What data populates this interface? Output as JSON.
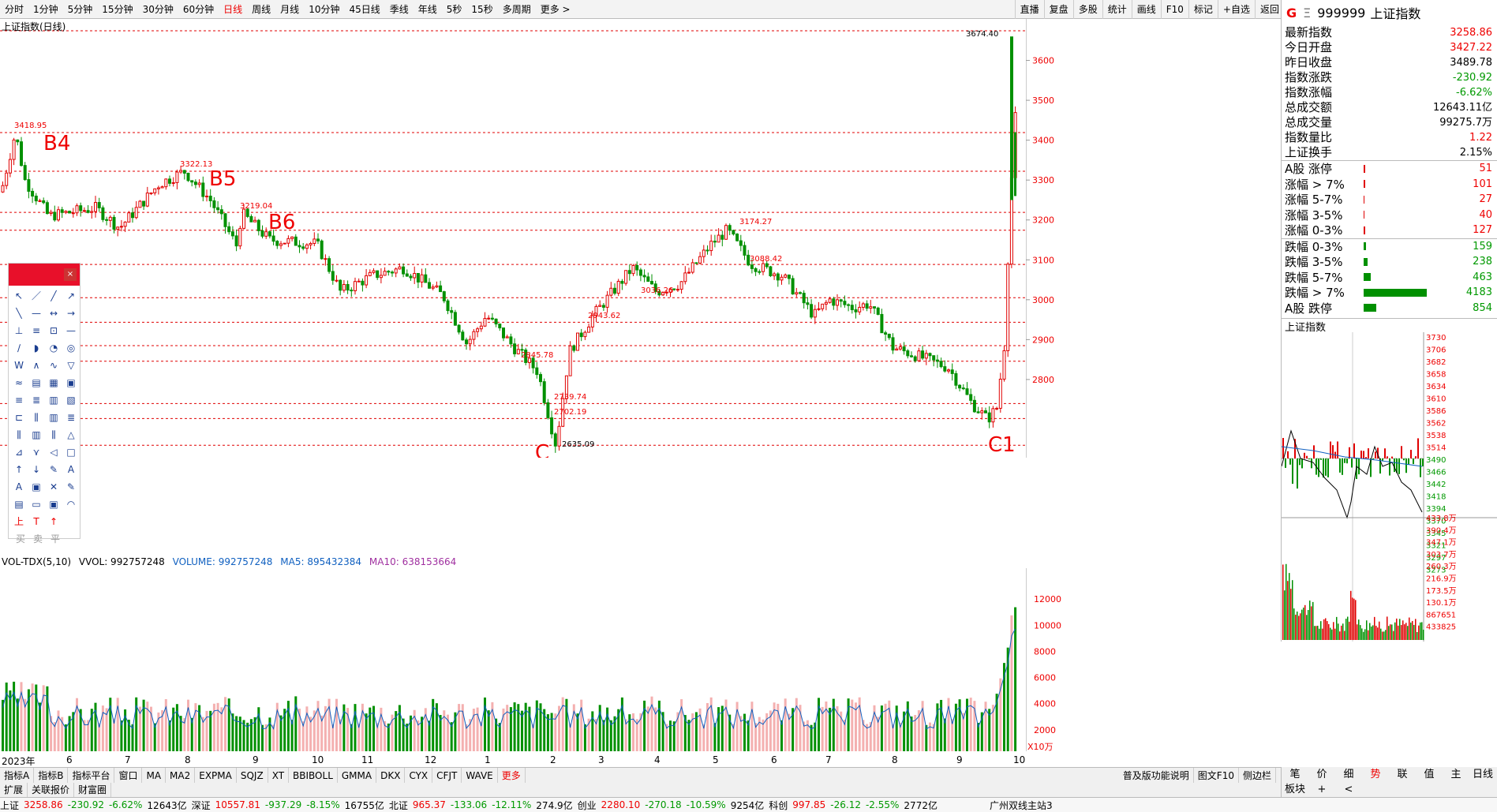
{
  "topbar": {
    "periods": [
      "分时",
      "1分钟",
      "5分钟",
      "15分钟",
      "30分钟",
      "60分钟",
      "日线",
      "周线",
      "月线",
      "10分钟",
      "45日线",
      "季线",
      "年线",
      "5秒",
      "15秒",
      "多周期",
      "更多 >"
    ],
    "active": "日线",
    "right": [
      "直播",
      "复盘",
      "多股",
      "统计",
      "画线",
      "F10",
      "标记",
      "+自选",
      "返回"
    ]
  },
  "header": {
    "g": "G",
    "e": "Ξ",
    "code": "999999",
    "name": "上证指数"
  },
  "chart_label": "上证指数(日线)",
  "quote": [
    {
      "k": "最新指数",
      "v": "3258.86",
      "c": "up"
    },
    {
      "k": "今日开盘",
      "v": "3427.22",
      "c": "up"
    },
    {
      "k": "昨日收盘",
      "v": "3489.78",
      "c": ""
    },
    {
      "k": "指数涨跌",
      "v": "-230.92",
      "c": "dn"
    },
    {
      "k": "指数涨幅",
      "v": "-6.62%",
      "c": "dn"
    },
    {
      "k": "总成交额",
      "v": "12643.11亿",
      "c": ""
    },
    {
      "k": "总成交量",
      "v": "99275.7万",
      "c": ""
    },
    {
      "k": "指数量比",
      "v": "1.22",
      "c": "up"
    },
    {
      "k": "上证换手",
      "v": "2.15%",
      "c": ""
    }
  ],
  "breadth_up": [
    {
      "k": "A股 涨停",
      "v": "51",
      "w": 2
    },
    {
      "k": "涨幅 > 7%",
      "v": "101",
      "w": 3
    },
    {
      "k": "涨幅 5-7%",
      "v": "27",
      "w": 1
    },
    {
      "k": "涨幅 3-5%",
      "v": "40",
      "w": 1
    },
    {
      "k": "涨幅 0-3%",
      "v": "127",
      "w": 3
    }
  ],
  "breadth_dn": [
    {
      "k": "跌幅 0-3%",
      "v": "159",
      "w": 4
    },
    {
      "k": "跌幅 3-5%",
      "v": "238",
      "w": 6
    },
    {
      "k": "跌幅 5-7%",
      "v": "463",
      "w": 11
    },
    {
      "k": "跌幅 > 7%",
      "v": "4183",
      "w": 100
    },
    {
      "k": "A股 跌停",
      "v": "854",
      "w": 20
    }
  ],
  "mini_title": "上证指数",
  "mini_price_ticks": [
    "3730",
    "3706",
    "3682",
    "3658",
    "3634",
    "3610",
    "3586",
    "3562",
    "3538",
    "3514",
    "3490",
    "3466",
    "3442",
    "3418",
    "3394",
    "3370",
    "3345",
    "3321",
    "3297",
    "3273"
  ],
  "mini_vol_ticks": [
    "433.8万",
    "390.4万",
    "347.1万",
    "303.7万",
    "260.3万",
    "216.9万",
    "173.5万",
    "130.1万",
    "867651",
    "433825"
  ],
  "price_ticks": [
    "3600",
    "3500",
    "3400",
    "3300",
    "3200",
    "3100",
    "3000",
    "2900",
    "2800"
  ],
  "vol_ticks": [
    "12000",
    "10000",
    "8000",
    "6000",
    "4000",
    "2000"
  ],
  "vol_unit": "X10万",
  "vol_label": {
    "name": "VOL-TDX(5,10)",
    "vvol": "VVOL: 992757248",
    "volume": "VOLUME: 992757248",
    "ma5": "MA5: 895432384",
    "ma10": "MA10: 638153664"
  },
  "annotations": [
    {
      "t": "B4",
      "big": true
    },
    {
      "t": "B5",
      "big": true
    },
    {
      "t": "B6",
      "big": true
    },
    {
      "t": "C",
      "big": true
    },
    {
      "t": "C1",
      "big": true
    },
    {
      "t": "3418.95"
    },
    {
      "t": "3322.13"
    },
    {
      "t": "3219.04"
    },
    {
      "t": "3174.27"
    },
    {
      "t": "3088.42"
    },
    {
      "t": "3036.26"
    },
    {
      "t": "2943.62"
    },
    {
      "t": "2845.78"
    },
    {
      "t": "2739.74"
    },
    {
      "t": "2702.19"
    },
    {
      "t": "2635.09"
    },
    {
      "t": "3674.40"
    }
  ],
  "months": [
    "2023年",
    "6",
    "7",
    "8",
    "9",
    "10",
    "11",
    "12",
    "1",
    "2",
    "3",
    "4",
    "5",
    "6",
    "7",
    "8",
    "9",
    "10"
  ],
  "tabs1": [
    "指标A",
    "指标B",
    "指标平台",
    "窗口",
    "MA",
    "MA2",
    "EXPMA",
    "SQJZ",
    "XT",
    "BBIBOLL",
    "GMMA",
    "DKX",
    "CYX",
    "CFJT",
    "WAVE",
    "更多"
  ],
  "tabs2": [
    "扩展",
    "关联报价",
    "财富圈"
  ],
  "mid_tabs": [
    "普及版功能说明",
    "图文F10",
    "侧边栏"
  ],
  "rtabs": [
    "笔",
    "价",
    "细",
    "势",
    "联",
    "值",
    "主",
    "日线",
    "板块",
    "+",
    "<"
  ],
  "status": {
    "sh": "上证",
    "sh_v": "3258.86",
    "sh_c": "-230.92",
    "sh_p": "-6.62%",
    "sh_amt": "12643亿",
    "sz": "深证",
    "sz_v": "10557.81",
    "sz_c": "-937.29",
    "sz_p": "-8.15%",
    "sz_amt": "16755亿",
    "bz": "北证",
    "bz_v": "965.37",
    "bz_c": "-133.06",
    "bz_p": "-12.11%",
    "bz_amt": "274.9亿",
    "cy": "创业",
    "cy_v": "2280.10",
    "cy_c": "-270.18",
    "cy_p": "-10.59%",
    "cy_amt": "9254亿",
    "kc": "科创",
    "kc_v": "997.85",
    "kc_c": "-26.12",
    "kc_p": "-2.55%",
    "kc_amt": "2772亿",
    "site": "广州双线主站3"
  },
  "toolbox": {
    "buy": "买",
    "sell": "卖",
    "flat": "平",
    "close": "×",
    "up": "上",
    "tee": "T"
  },
  "colors": {
    "up": "#e00000",
    "down": "#009000",
    "dash": "#e00000"
  }
}
